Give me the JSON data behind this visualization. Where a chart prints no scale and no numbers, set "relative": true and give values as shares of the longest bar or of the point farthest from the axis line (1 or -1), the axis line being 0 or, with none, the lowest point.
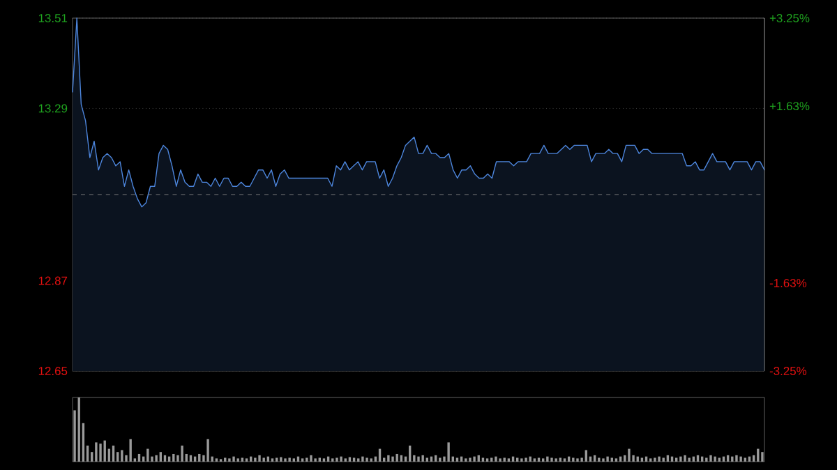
{
  "chart_data": [
    {
      "type": "area",
      "categories": [
        null,
        null,
        null,
        null,
        null,
        null,
        null,
        null,
        null,
        null,
        null,
        null,
        null,
        null,
        null,
        null,
        null,
        null,
        null,
        null,
        null,
        null,
        null,
        null,
        null,
        null,
        null,
        null,
        null,
        null,
        null,
        null,
        null,
        null,
        null,
        null,
        null,
        null,
        null,
        null,
        null,
        null,
        null,
        null,
        null,
        null,
        null,
        null,
        null,
        null,
        null,
        null,
        null,
        null,
        null,
        null,
        null,
        null,
        null,
        null,
        null,
        null,
        null,
        null,
        null,
        null,
        null,
        null,
        null,
        null,
        null,
        null,
        null,
        null,
        null,
        null,
        null,
        null,
        null,
        null,
        null,
        null,
        null,
        null,
        null,
        null,
        null,
        null,
        null,
        null,
        null,
        null,
        null,
        null,
        null,
        null,
        null,
        null,
        null,
        null,
        null,
        null,
        null,
        null,
        null,
        null,
        null,
        null,
        null,
        null,
        null,
        null,
        null,
        null,
        null,
        null,
        null,
        null,
        null,
        null,
        null,
        null,
        null,
        null,
        null,
        null,
        null,
        null,
        null,
        null,
        null,
        null,
        null,
        null,
        null,
        null,
        null,
        null,
        null,
        null,
        null,
        null,
        null,
        null,
        null,
        null,
        null,
        null,
        null,
        null,
        null,
        null,
        null,
        null,
        null,
        null,
        null,
        null,
        null,
        null,
        null
      ],
      "series": [
        {
          "color": "#4d86dd",
          "values": [
            13.33,
            13.51,
            13.3,
            13.26,
            13.17,
            13.21,
            13.14,
            13.17,
            13.18,
            13.17,
            13.15,
            13.16,
            13.1,
            13.14,
            13.1,
            13.07,
            13.05,
            13.06,
            13.1,
            13.1,
            13.18,
            13.2,
            13.19,
            13.15,
            13.1,
            13.14,
            13.11,
            13.1,
            13.1,
            13.13,
            13.11,
            13.11,
            13.1,
            13.12,
            13.1,
            13.12,
            13.12,
            13.1,
            13.1,
            13.11,
            13.1,
            13.1,
            13.12,
            13.14,
            13.14,
            13.12,
            13.14,
            13.1,
            13.13,
            13.14,
            13.12,
            13.12,
            13.12,
            13.12,
            13.12,
            13.12,
            13.12,
            13.12,
            13.12,
            13.12,
            13.1,
            13.15,
            13.14,
            13.16,
            13.14,
            13.15,
            13.16,
            13.14,
            13.16,
            13.16,
            13.16,
            13.12,
            13.14,
            13.1,
            13.12,
            13.15,
            13.17,
            13.2,
            13.21,
            13.22,
            13.18,
            13.18,
            13.2,
            13.18,
            13.18,
            13.17,
            13.17,
            13.18,
            13.14,
            13.12,
            13.14,
            13.14,
            13.15,
            13.13,
            13.12,
            13.12,
            13.13,
            13.12,
            13.16,
            13.16,
            13.16,
            13.16,
            13.15,
            13.16,
            13.16,
            13.16,
            13.18,
            13.18,
            13.18,
            13.2,
            13.18,
            13.18,
            13.18,
            13.19,
            13.2,
            13.19,
            13.2,
            13.2,
            13.2,
            13.2,
            13.16,
            13.18,
            13.18,
            13.18,
            13.19,
            13.18,
            13.18,
            13.16,
            13.2,
            13.2,
            13.2,
            13.18,
            13.19,
            13.19,
            13.18,
            13.18,
            13.18,
            13.18,
            13.18,
            13.18,
            13.18,
            13.18,
            13.15,
            13.15,
            13.16,
            13.14,
            13.14,
            13.16,
            13.18,
            13.16,
            13.16,
            13.16,
            13.14,
            13.16,
            13.16,
            13.16,
            13.16,
            13.14,
            13.16,
            13.16,
            13.14
          ]
        }
      ],
      "ylim": [
        12.65,
        13.51
      ],
      "yticks": [
        12.65,
        12.87,
        13.29,
        13.51
      ],
      "y2lim": [
        -3.25,
        3.25
      ],
      "y2ticks": [
        {
          "value": -3.25,
          "label": "-3.25%"
        },
        {
          "value": -1.63,
          "label": "-1.63%"
        },
        {
          "value": 1.63,
          "label": "+1.63%"
        },
        {
          "value": 3.25,
          "label": "+3.25%"
        }
      ],
      "ref_lines": [
        {
          "axis": "y",
          "value": 13.08,
          "line_style": "dashed"
        }
      ],
      "grid": "y"
    },
    {
      "type": "bar",
      "relative": true,
      "categories": [
        null,
        null,
        null,
        null,
        null,
        null,
        null,
        null,
        null,
        null,
        null,
        null,
        null,
        null,
        null,
        null,
        null,
        null,
        null,
        null,
        null,
        null,
        null,
        null,
        null,
        null,
        null,
        null,
        null,
        null,
        null,
        null,
        null,
        null,
        null,
        null,
        null,
        null,
        null,
        null,
        null,
        null,
        null,
        null,
        null,
        null,
        null,
        null,
        null,
        null,
        null,
        null,
        null,
        null,
        null,
        null,
        null,
        null,
        null,
        null,
        null,
        null,
        null,
        null,
        null,
        null,
        null,
        null,
        null,
        null,
        null,
        null,
        null,
        null,
        null,
        null,
        null,
        null,
        null,
        null,
        null,
        null,
        null,
        null,
        null,
        null,
        null,
        null,
        null,
        null,
        null,
        null,
        null,
        null,
        null,
        null,
        null,
        null,
        null,
        null,
        null,
        null,
        null,
        null,
        null,
        null,
        null,
        null,
        null,
        null,
        null,
        null,
        null,
        null,
        null,
        null,
        null,
        null,
        null,
        null,
        null,
        null,
        null,
        null,
        null,
        null,
        null,
        null,
        null,
        null,
        null,
        null,
        null,
        null,
        null,
        null,
        null,
        null,
        null,
        null,
        null,
        null,
        null,
        null,
        null,
        null,
        null,
        null,
        null,
        null,
        null,
        null,
        null,
        null,
        null,
        null,
        null,
        null,
        null,
        null,
        null
      ],
      "series": [
        {
          "color": "#9a9a9a",
          "values": [
            0.8,
            1,
            0.6,
            0.25,
            0.15,
            0.3,
            0.28,
            0.33,
            0.2,
            0.25,
            0.15,
            0.18,
            0.1,
            0.35,
            0.05,
            0.12,
            0.08,
            0.2,
            0.08,
            0.1,
            0.15,
            0.1,
            0.08,
            0.12,
            0.1,
            0.25,
            0.12,
            0.1,
            0.08,
            0.12,
            0.1,
            0.35,
            0.08,
            0.05,
            0.04,
            0.06,
            0.05,
            0.08,
            0.05,
            0.06,
            0.05,
            0.08,
            0.06,
            0.1,
            0.06,
            0.08,
            0.05,
            0.06,
            0.07,
            0.05,
            0.06,
            0.05,
            0.08,
            0.05,
            0.06,
            0.1,
            0.05,
            0.06,
            0.05,
            0.08,
            0.05,
            0.06,
            0.08,
            0.05,
            0.07,
            0.06,
            0.05,
            0.08,
            0.06,
            0.05,
            0.08,
            0.2,
            0.06,
            0.1,
            0.08,
            0.12,
            0.1,
            0.08,
            0.25,
            0.1,
            0.08,
            0.1,
            0.06,
            0.08,
            0.1,
            0.06,
            0.08,
            0.3,
            0.08,
            0.06,
            0.08,
            0.05,
            0.06,
            0.08,
            0.1,
            0.06,
            0.05,
            0.06,
            0.08,
            0.05,
            0.06,
            0.05,
            0.08,
            0.06,
            0.05,
            0.06,
            0.08,
            0.05,
            0.06,
            0.05,
            0.08,
            0.06,
            0.05,
            0.06,
            0.05,
            0.08,
            0.06,
            0.05,
            0.06,
            0.18,
            0.08,
            0.1,
            0.06,
            0.05,
            0.08,
            0.06,
            0.05,
            0.08,
            0.1,
            0.2,
            0.1,
            0.08,
            0.06,
            0.08,
            0.05,
            0.06,
            0.08,
            0.06,
            0.1,
            0.08,
            0.06,
            0.08,
            0.1,
            0.06,
            0.08,
            0.1,
            0.08,
            0.06,
            0.1,
            0.08,
            0.06,
            0.08,
            0.1,
            0.08,
            0.1,
            0.08,
            0.06,
            0.08,
            0.1,
            0.2,
            0.15
          ]
        }
      ]
    }
  ]
}
